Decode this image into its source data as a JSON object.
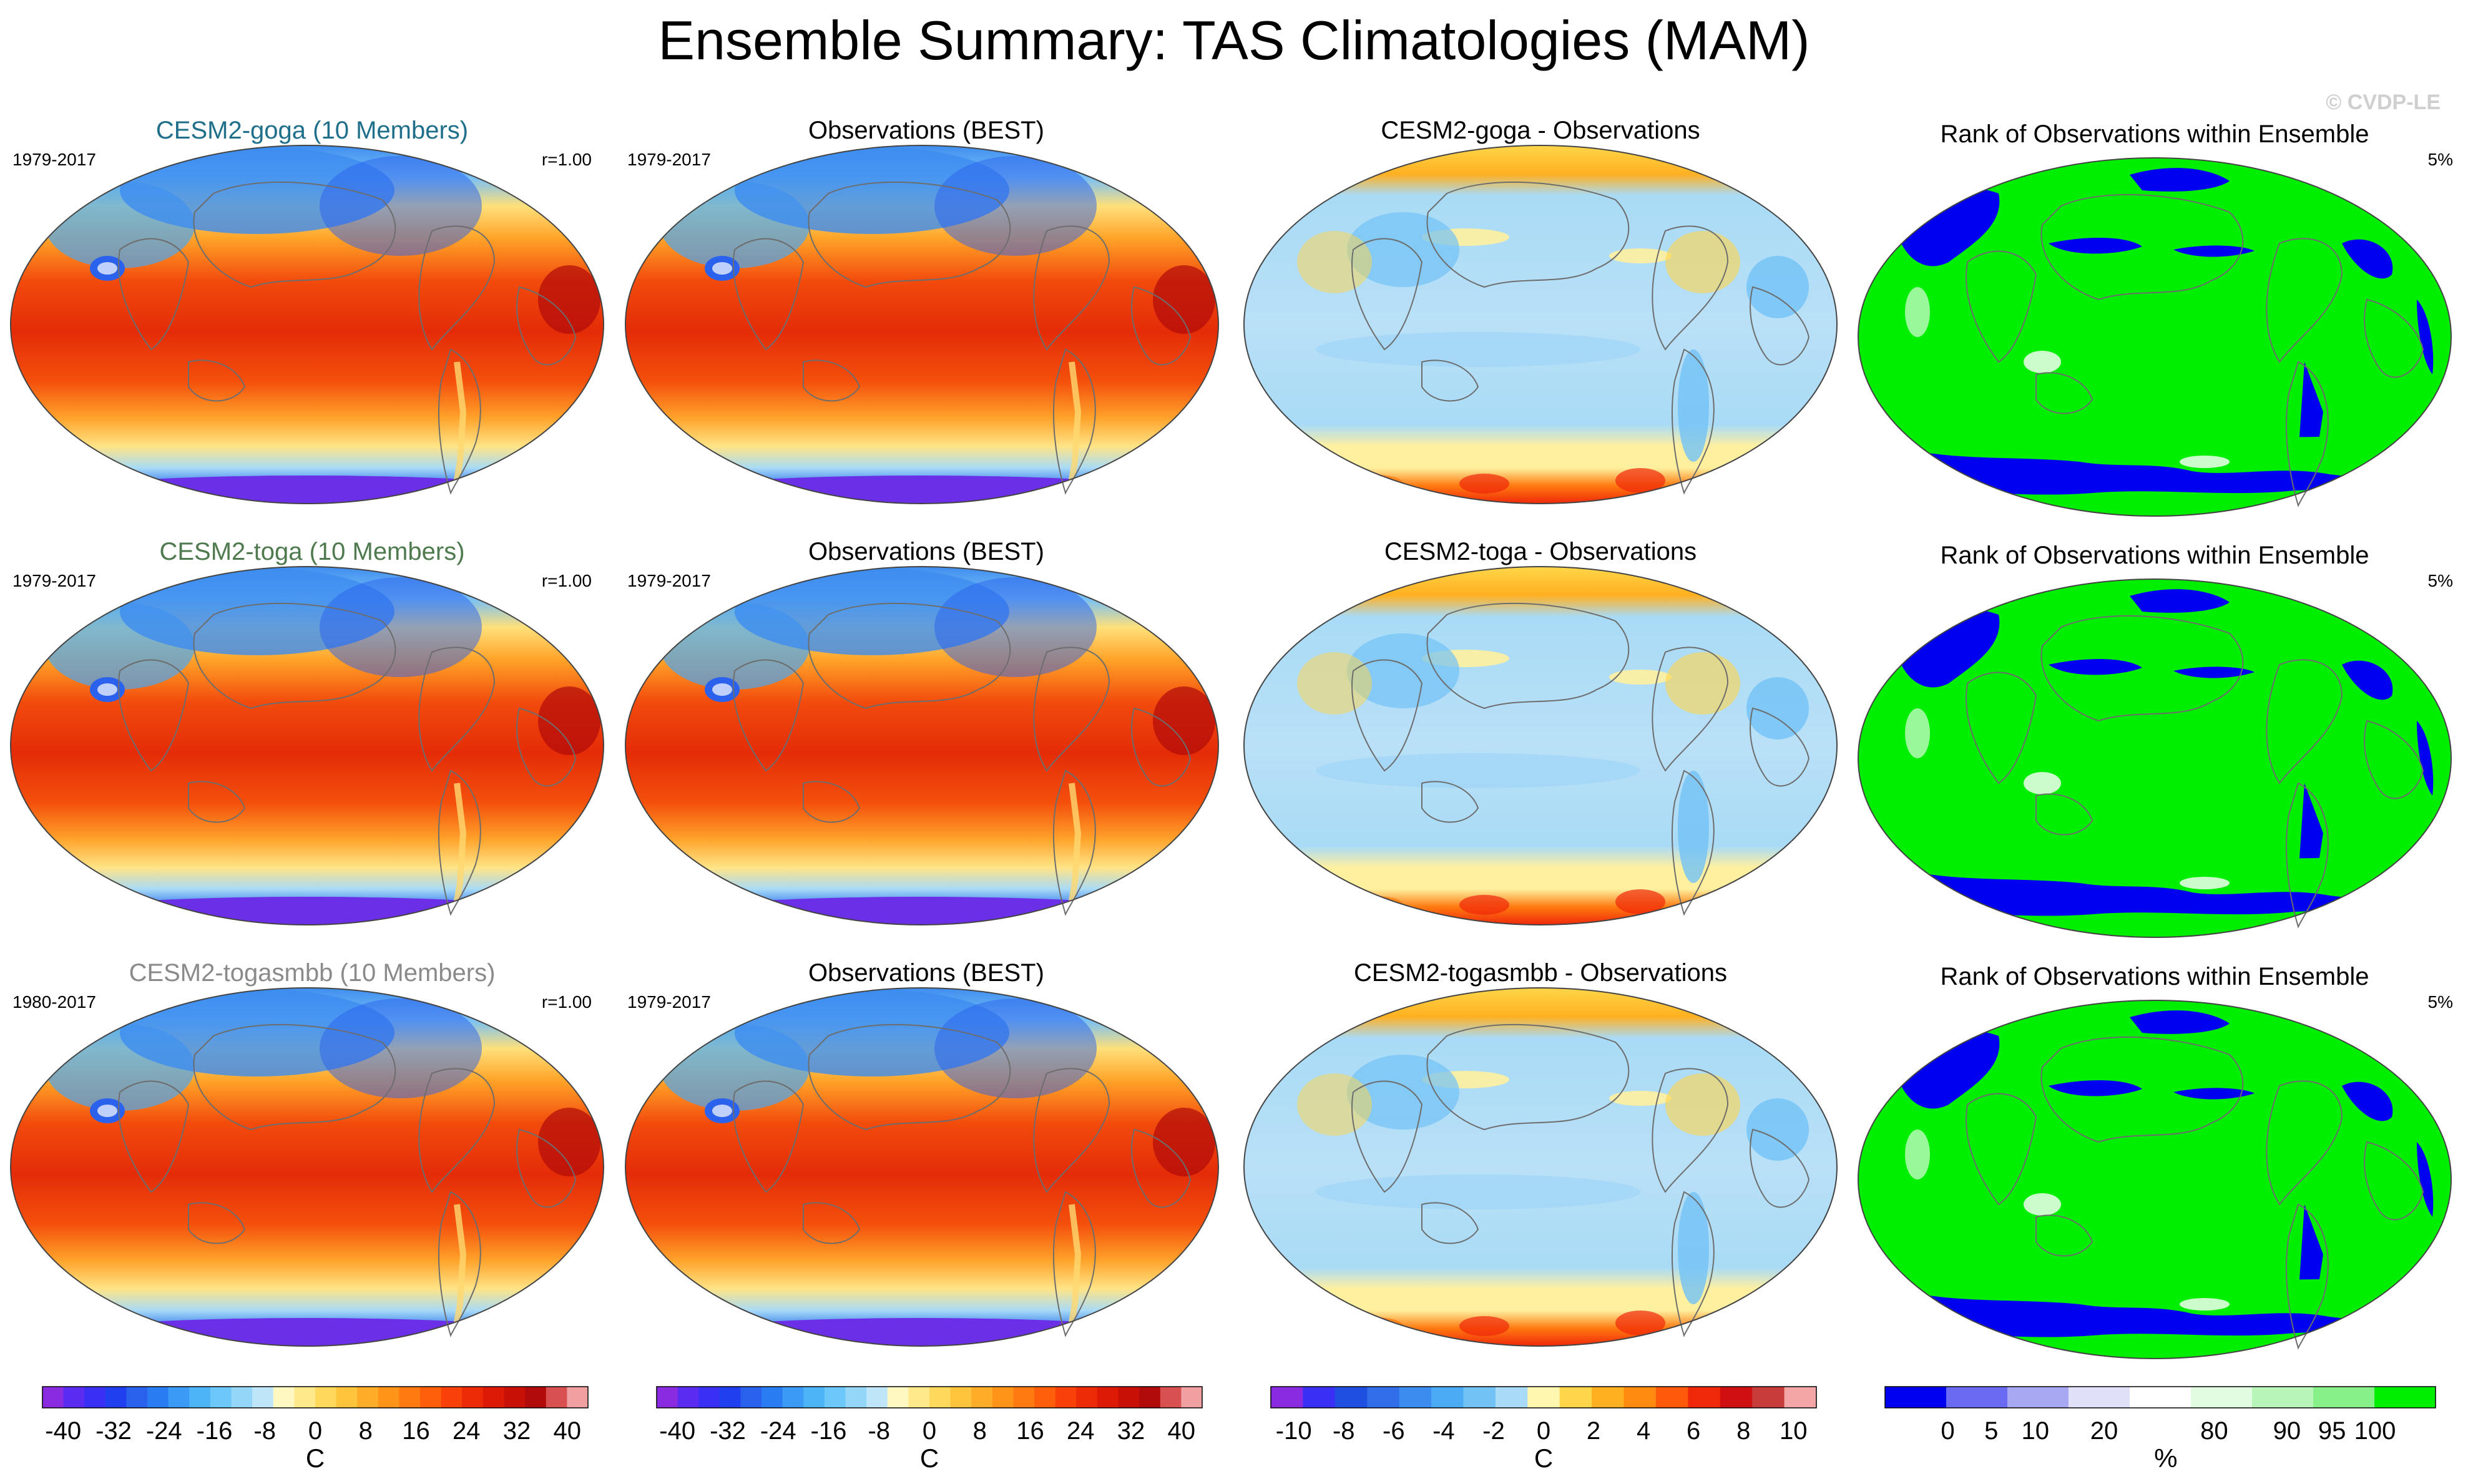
{
  "figure": {
    "title": "Ensemble Summary: TAS Climatologies (MAM)",
    "watermark": "© CVDP-LE"
  },
  "rows": [
    {
      "model_title": "CESM2-goga (10 Members)",
      "model_title_color": "#1f6f8b",
      "model_years": "1979-2017",
      "pattern_corr": "r=1.00",
      "obs_title": "Observations (BEST)",
      "obs_years": "1979-2017",
      "diff_title": "CESM2-goga - Observations",
      "rank_title": "Rank of Observations within Ensemble",
      "rank_pct": "5%"
    },
    {
      "model_title": "CESM2-toga (10 Members)",
      "model_title_color": "#4f7a4f",
      "model_years": "1979-2017",
      "pattern_corr": "r=1.00",
      "obs_title": "Observations (BEST)",
      "obs_years": "1979-2017",
      "diff_title": "CESM2-toga - Observations",
      "rank_title": "Rank of Observations within Ensemble",
      "rank_pct": "5%"
    },
    {
      "model_title": "CESM2-togasmbb (10 Members)",
      "model_title_color": "#8a8a8a",
      "model_years": "1980-2017",
      "pattern_corr": "r=1.00",
      "obs_title": "Observations (BEST)",
      "obs_years": "1979-2017",
      "diff_title": "CESM2-togasmbb - Observations",
      "rank_title": "Rank of Observations within Ensemble",
      "rank_pct": "5%"
    }
  ],
  "colorbars": {
    "temperature": {
      "unit": "C",
      "ticks": [
        "-40",
        "-32",
        "-24",
        "-16",
        "-8",
        "0",
        "8",
        "16",
        "24",
        "32",
        "40"
      ],
      "colors": [
        "#8a2be2",
        "#5a2bf0",
        "#3a2ff5",
        "#2040f0",
        "#2a62ee",
        "#2a7cf2",
        "#3a9af5",
        "#4cb4f7",
        "#6cc8f8",
        "#93d6f8",
        "#bfe6f8",
        "#fff8c0",
        "#ffe98a",
        "#ffd85c",
        "#ffc43c",
        "#ffac28",
        "#ff9418",
        "#ff7a10",
        "#ff5e0a",
        "#f84008",
        "#ec2a06",
        "#dc1a06",
        "#c81006",
        "#b00a0a",
        "#d85050",
        "#f0a0a0"
      ]
    },
    "difference": {
      "unit": "C",
      "ticks": [
        "-10",
        "-8",
        "-6",
        "-4",
        "-2",
        "0",
        "2",
        "4",
        "6",
        "8",
        "10"
      ],
      "colors": [
        "#8a2be2",
        "#3a2ff5",
        "#1f4fe0",
        "#2f6ee8",
        "#3c8cf0",
        "#4aaaf4",
        "#72c2f6",
        "#a9dbf6",
        "#fff6b0",
        "#ffd64a",
        "#ffb020",
        "#ff8a10",
        "#ff5a0a",
        "#f0280a",
        "#d01010",
        "#c83c3c",
        "#f4a6a6"
      ]
    },
    "rank": {
      "unit": "%",
      "ticks": [
        "0",
        "5",
        "10",
        "20",
        "80",
        "90",
        "95",
        "100"
      ],
      "colors": [
        "#0000f0",
        "#6a6af2",
        "#a8a8f2",
        "#e0e0f8",
        "#ffffff",
        "#e0fbe0",
        "#b8f5b8",
        "#88f088",
        "#00ee00"
      ]
    }
  }
}
